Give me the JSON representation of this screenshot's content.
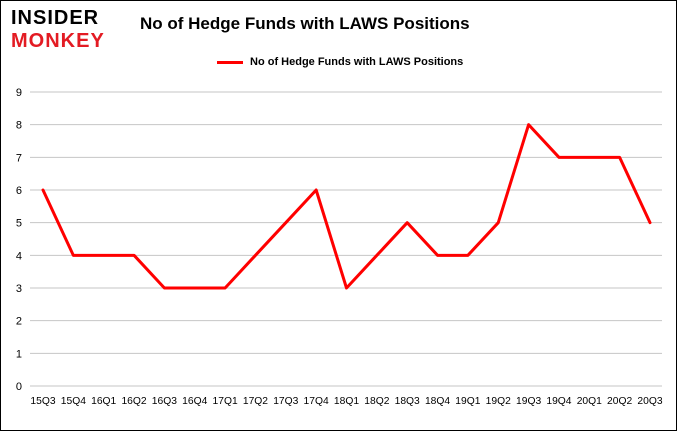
{
  "header": {
    "logo_top": "INSIDER",
    "logo_bottom": "MONKEY",
    "title": "No of Hedge Funds with LAWS Positions",
    "legend_label": "No of Hedge Funds with LAWS Positions"
  },
  "colors": {
    "line": "#ff0000",
    "grid": "#c6c6c6",
    "axis_text": "#000000",
    "logo_red": "#e31b23"
  },
  "chart_data": {
    "type": "line",
    "title": "No of Hedge Funds with LAWS Positions",
    "legend": [
      "No of Hedge Funds with LAWS Positions"
    ],
    "legend_position": "top",
    "grid": true,
    "categories": [
      "15Q3",
      "15Q4",
      "16Q1",
      "16Q2",
      "16Q3",
      "16Q4",
      "17Q1",
      "17Q2",
      "17Q3",
      "17Q4",
      "18Q1",
      "18Q2",
      "18Q3",
      "18Q4",
      "19Q1",
      "19Q2",
      "19Q3",
      "19Q4",
      "20Q1",
      "20Q2",
      "20Q3"
    ],
    "values": [
      6,
      4,
      4,
      4,
      3,
      3,
      3,
      4,
      5,
      6,
      3,
      4,
      5,
      4,
      4,
      5,
      8,
      7,
      7,
      7,
      5
    ],
    "xlabel": "",
    "ylabel": "",
    "ylim": [
      0,
      9
    ],
    "ytick_step": 1
  }
}
